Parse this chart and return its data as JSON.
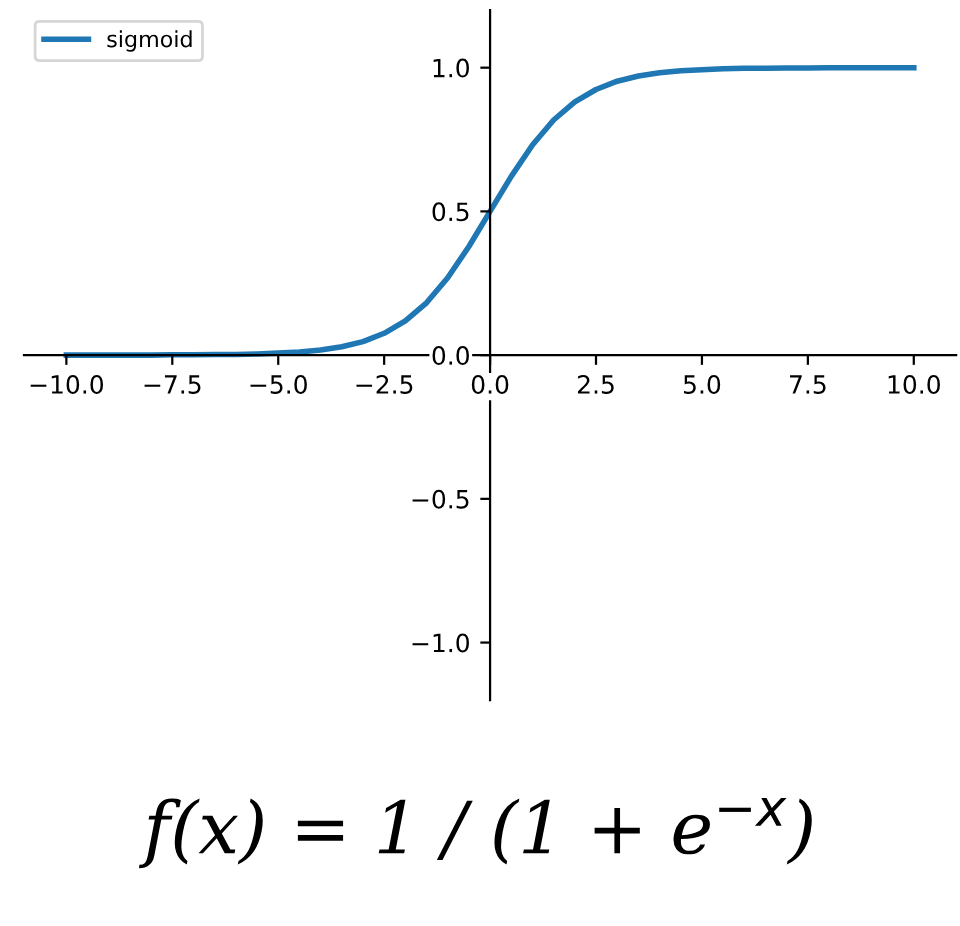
{
  "chart_data": {
    "type": "line",
    "legend": "top left",
    "grid": false,
    "marker": "none",
    "line_style": "solid",
    "xlim": [
      -11,
      11
    ],
    "ylim": [
      -1.2,
      1.2
    ],
    "xticks": [
      {
        "value": -10,
        "label": "−10.0"
      },
      {
        "value": -7.5,
        "label": "−7.5"
      },
      {
        "value": -5,
        "label": "−5.0"
      },
      {
        "value": -2.5,
        "label": "−2.5"
      },
      {
        "value": 0,
        "label": "0.0"
      },
      {
        "value": 2.5,
        "label": "2.5"
      },
      {
        "value": 5,
        "label": "5.0"
      },
      {
        "value": 7.5,
        "label": "7.5"
      },
      {
        "value": 10,
        "label": "10.0"
      }
    ],
    "yticks": [
      {
        "value": -1,
        "label": "−1.0"
      },
      {
        "value": -0.5,
        "label": "−0.5"
      },
      {
        "value": 0,
        "label": "0.0"
      },
      {
        "value": 0.5,
        "label": "0.5"
      },
      {
        "value": 1,
        "label": "1.0"
      }
    ],
    "annotations": [
      "f(x) = 1 / (1 + e$^{−x}$)"
    ],
    "series": [
      {
        "name": "sigmoid",
        "color": "#1f77b4",
        "x": [
          -10,
          -9.5,
          -9,
          -8.5,
          -8,
          -7.5,
          -7,
          -6.5,
          -6,
          -5.5,
          -5,
          -4.5,
          -4,
          -3.5,
          -3,
          -2.5,
          -2,
          -1.5,
          -1,
          -0.5,
          0,
          0.5,
          1,
          1.5,
          2,
          2.5,
          3,
          3.5,
          4,
          4.5,
          5,
          5.5,
          6,
          6.5,
          7,
          7.5,
          8,
          8.5,
          9,
          9.5,
          10
        ],
        "values": [
          0.0,
          0.0,
          0.0,
          0.0,
          0.0,
          0.001,
          0.001,
          0.002,
          0.002,
          0.004,
          0.007,
          0.011,
          0.018,
          0.029,
          0.047,
          0.076,
          0.119,
          0.182,
          0.269,
          0.378,
          0.5,
          0.622,
          0.731,
          0.818,
          0.881,
          0.924,
          0.953,
          0.971,
          0.982,
          0.989,
          0.993,
          0.996,
          0.998,
          0.998,
          0.999,
          0.999,
          1.0,
          1.0,
          1.0,
          1.0,
          1.0
        ]
      }
    ]
  }
}
